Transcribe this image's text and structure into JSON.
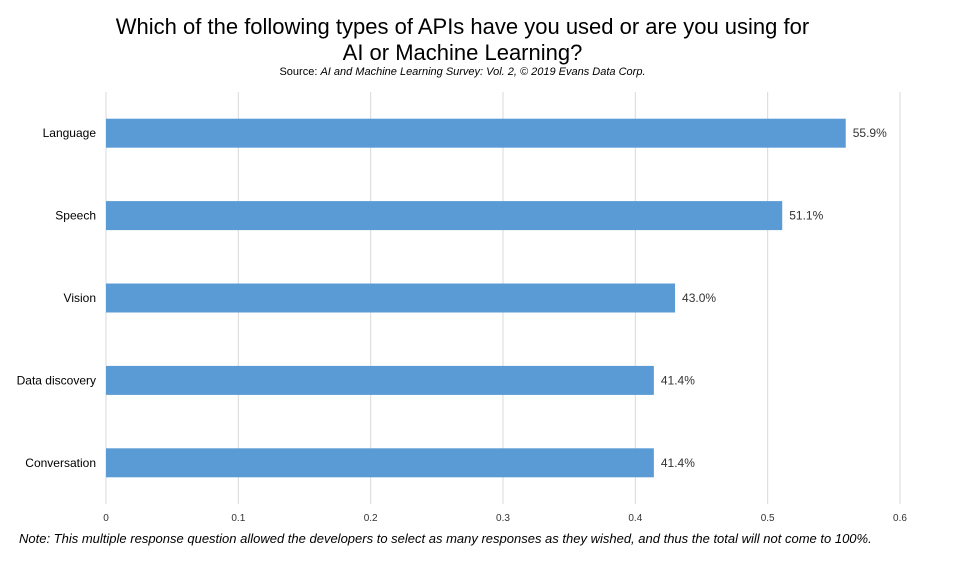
{
  "title_line1": "Which of the following types of APIs have you used or are you using for",
  "title_line2": "AI or Machine Learning?",
  "source_label": "Source:",
  "source_text": "AI and Machine Learning Survey: Vol. 2, © 2019 Evans Data Corp.",
  "note": "Note: This multiple response question allowed the developers to select as many responses as they wished, and thus the total will not come to 100%.",
  "colors": {
    "bar": "#5b9bd5",
    "grid": "#d9d9d9",
    "text": "#000000"
  },
  "chart_data": {
    "type": "bar",
    "orientation": "horizontal",
    "categories": [
      "Language",
      "Speech",
      "Vision",
      "Data discovery",
      "Conversation"
    ],
    "values": [
      0.559,
      0.511,
      0.43,
      0.414,
      0.414
    ],
    "data_labels": [
      "55.9%",
      "51.1%",
      "43.0%",
      "41.4%",
      "41.4%"
    ],
    "xlim": [
      0,
      0.6
    ],
    "xticks": [
      0,
      0.1,
      0.2,
      0.3,
      0.4,
      0.5,
      0.6
    ],
    "xtick_labels": [
      "0",
      "0.1",
      "0.2",
      "0.3",
      "0.4",
      "0.5",
      "0.6"
    ],
    "grid": true,
    "legend": false
  }
}
